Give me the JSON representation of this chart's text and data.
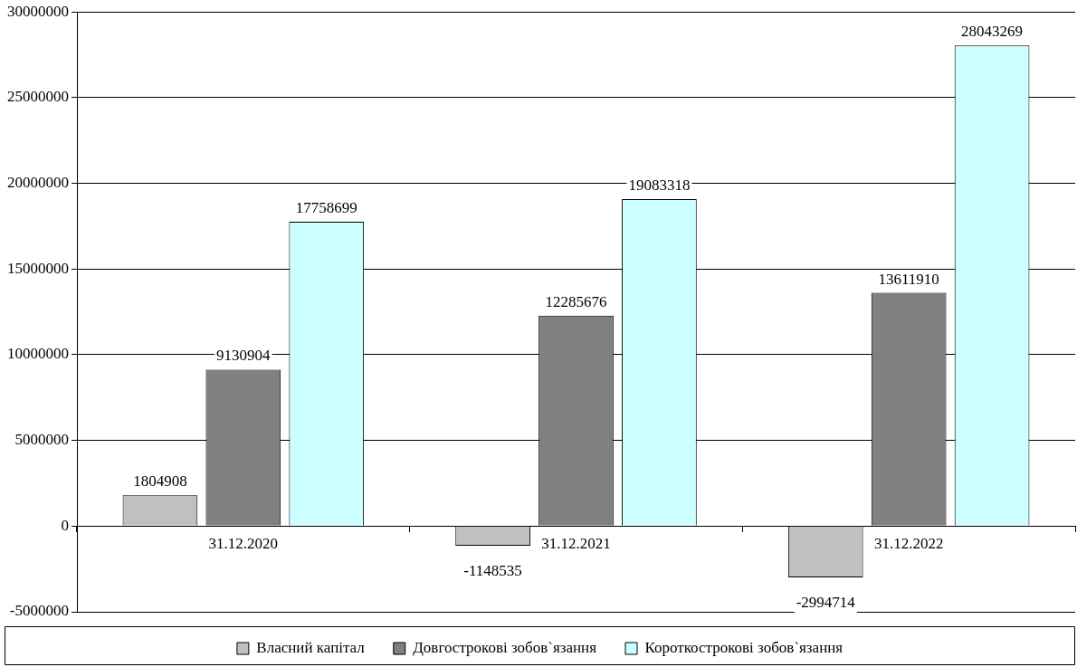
{
  "chart_data": {
    "type": "bar",
    "categories": [
      "31.12.2020",
      "31.12.2021",
      "31.12.2022"
    ],
    "series": [
      {
        "name": "Власний капітал",
        "color": "#c0c0c0",
        "values": [
          1804908,
          -1148535,
          -2994714
        ]
      },
      {
        "name": "Довгострокові зобов`язання",
        "color": "#808080",
        "values": [
          9130904,
          12285676,
          13611910
        ]
      },
      {
        "name": "Короткострокові зобов`язання",
        "color": "#ccffff",
        "values": [
          17758699,
          19083318,
          28043269
        ]
      }
    ],
    "ylim": [
      -5000000,
      30000000
    ],
    "yticks": [
      -5000000,
      0,
      5000000,
      10000000,
      15000000,
      20000000,
      25000000,
      30000000
    ],
    "grid": "y",
    "legend": "bottom",
    "data_labels": true
  }
}
